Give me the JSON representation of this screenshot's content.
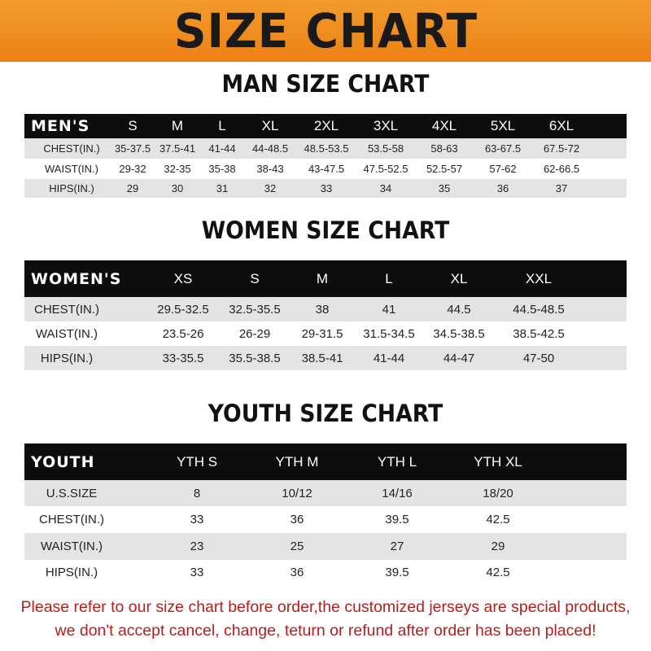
{
  "banner": {
    "title": "SIZE CHART",
    "color": "#ef8a1f"
  },
  "men": {
    "title": "MAN SIZE CHART",
    "header": [
      "MEN'S",
      "S",
      "M",
      "L",
      "XL",
      "2XL",
      "3XL",
      "4XL",
      "5XL",
      "6XL"
    ],
    "rows": [
      [
        "CHEST(IN.)",
        "35-37.5",
        "37.5-41",
        "41-44",
        "44-48.5",
        "48.5-53.5",
        "53.5-58",
        "58-63",
        "63-67.5",
        "67.5-72"
      ],
      [
        "WAIST(IN.)",
        "29-32",
        "32-35",
        "35-38",
        "38-43",
        "43-47.5",
        "47.5-52.5",
        "52.5-57",
        "57-62",
        "62-66.5"
      ],
      [
        "HIPS(IN.)",
        "29",
        "30",
        "31",
        "32",
        "33",
        "34",
        "35",
        "36",
        "37"
      ]
    ]
  },
  "women": {
    "title": "WOMEN SIZE CHART",
    "header": [
      "WOMEN'S",
      "XS",
      "S",
      "M",
      "L",
      "XL",
      "XXL"
    ],
    "rows": [
      [
        "CHEST(IN.)",
        "29.5-32.5",
        "32.5-35.5",
        "38",
        "41",
        "44.5",
        "44.5-48.5"
      ],
      [
        "WAIST(IN.)",
        "23.5-26",
        "26-29",
        "29-31.5",
        "31.5-34.5",
        "34.5-38.5",
        "38.5-42.5"
      ],
      [
        "HIPS(IN.)",
        "33-35.5",
        "35.5-38.5",
        "38.5-41",
        "41-44",
        "44-47",
        "47-50"
      ]
    ]
  },
  "youth": {
    "title": "YOUTH SIZE CHART",
    "header": [
      "YOUTH",
      "YTH S",
      "YTH M",
      "YTH L",
      "YTH XL"
    ],
    "rows": [
      [
        "U.S.SIZE",
        "8",
        "10/12",
        "14/16",
        "18/20"
      ],
      [
        "CHEST(IN.)",
        "33",
        "36",
        "39.5",
        "42.5"
      ],
      [
        "WAIST(IN.)",
        "23",
        "25",
        "27",
        "29"
      ],
      [
        "HIPS(IN.)",
        "33",
        "36",
        "39.5",
        "42.5"
      ]
    ]
  },
  "notice": {
    "line1": "Please refer to our size chart before order,the customized jerseys are special products,",
    "line2": "we don't accept cancel, change, teturn or refund after order has been placed!",
    "color": "#b3201e"
  }
}
